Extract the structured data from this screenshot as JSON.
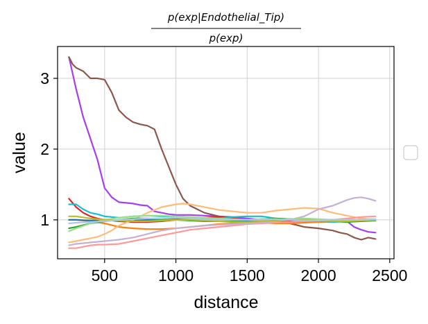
{
  "chart_data": {
    "type": "line",
    "title": {
      "numerator": "p(exp|Endothelial_Tip)",
      "denominator": "p(exp)"
    },
    "xlabel": "distance",
    "ylabel": "value",
    "xlim": [
      170,
      2530
    ],
    "ylim": [
      0.45,
      3.45
    ],
    "xticks": [
      500,
      1000,
      1500,
      2000,
      2500
    ],
    "yticks": [
      1,
      2,
      3
    ],
    "grid": true,
    "legend": "right, empty box",
    "series": [
      {
        "color": "#a83cf0",
        "x": [
          250,
          300,
          350,
          400,
          450,
          500,
          550,
          600,
          650,
          700,
          750,
          800,
          850,
          900,
          950,
          1000,
          1100,
          1200,
          1300,
          1400,
          1500,
          1600,
          1700,
          1800,
          1900,
          2000,
          2100,
          2200,
          2250,
          2300,
          2350,
          2400
        ],
        "y": [
          3.3,
          2.85,
          2.45,
          2.15,
          1.85,
          1.45,
          1.32,
          1.25,
          1.24,
          1.23,
          1.21,
          1.2,
          1.12,
          1.1,
          1.08,
          1.07,
          1.07,
          1.06,
          1.05,
          1.04,
          1.02,
          1.0,
          0.98,
          0.97,
          0.98,
          1.0,
          1.0,
          0.98,
          0.9,
          0.86,
          0.83,
          0.82
        ]
      },
      {
        "color": "#8c564b",
        "x": [
          250,
          275,
          300,
          350,
          400,
          450,
          500,
          550,
          600,
          650,
          700,
          750,
          800,
          850,
          900,
          950,
          1000,
          1050,
          1100,
          1150,
          1200,
          1300,
          1400,
          1500,
          1600,
          1700,
          1800,
          1900,
          2000,
          2100,
          2150,
          2200,
          2250,
          2300,
          2350,
          2400
        ],
        "y": [
          3.3,
          3.2,
          3.15,
          3.1,
          3.0,
          3.0,
          2.98,
          2.8,
          2.55,
          2.45,
          2.38,
          2.35,
          2.33,
          2.28,
          2.0,
          1.75,
          1.5,
          1.3,
          1.2,
          1.15,
          1.1,
          1.05,
          1.02,
          1.0,
          0.95,
          0.98,
          0.95,
          0.9,
          0.88,
          0.85,
          0.82,
          0.8,
          0.75,
          0.72,
          0.75,
          0.73
        ]
      },
      {
        "color": "#d62728",
        "x": [
          250,
          300,
          350,
          400,
          450,
          500,
          600,
          700,
          800,
          900,
          1000,
          1100,
          1200,
          1300,
          1400,
          1500,
          1600,
          1700,
          1800,
          1900,
          2000,
          2100,
          2200,
          2300,
          2400
        ],
        "y": [
          1.3,
          1.18,
          1.1,
          1.05,
          1.02,
          1.0,
          0.98,
          0.97,
          0.97,
          0.98,
          1.0,
          1.02,
          1.03,
          1.04,
          1.02,
          1.0,
          0.99,
          0.98,
          0.99,
          1.0,
          1.0,
          0.99,
          0.98,
          0.99,
          1.0
        ]
      },
      {
        "color": "#17becf",
        "x": [
          250,
          300,
          350,
          400,
          450,
          500,
          600,
          700,
          800,
          900,
          1000,
          1100,
          1200,
          1300,
          1400,
          1500,
          1600,
          1700,
          1800,
          1900,
          2000,
          2100,
          2200,
          2300,
          2400
        ],
        "y": [
          1.22,
          1.22,
          1.15,
          1.1,
          1.08,
          1.05,
          1.03,
          1.05,
          1.06,
          1.05,
          1.05,
          1.04,
          1.02,
          1.02,
          1.04,
          1.05,
          1.05,
          1.02,
          1.0,
          0.98,
          0.97,
          0.97,
          0.98,
          1.0,
          1.0
        ]
      },
      {
        "color": "#ff7f0e",
        "x": [
          250,
          300,
          400,
          500,
          600,
          700,
          800,
          900,
          1000,
          1100,
          1200,
          1300,
          1400,
          1500,
          1600,
          1700,
          1800,
          1900,
          2000,
          2100,
          2200,
          2300,
          2400
        ],
        "y": [
          1.0,
          1.0,
          0.98,
          0.95,
          0.9,
          0.88,
          0.87,
          0.87,
          0.88,
          0.9,
          0.92,
          0.94,
          0.95,
          0.96,
          0.96,
          0.95,
          0.95,
          0.96,
          0.97,
          0.98,
          0.98,
          0.99,
          1.0
        ]
      },
      {
        "color": "#1f77b4",
        "x": [
          250,
          300,
          400,
          500,
          600,
          700,
          800,
          900,
          1000,
          1100,
          1200,
          1300,
          1400,
          1500,
          1600,
          1700,
          1800,
          1900,
          2000,
          2100,
          2200,
          2300,
          2400
        ],
        "y": [
          1.0,
          1.0,
          0.99,
          0.99,
          0.99,
          0.99,
          1.0,
          1.01,
          1.02,
          1.02,
          1.01,
          1.0,
          0.99,
          0.99,
          0.99,
          1.0,
          1.01,
          1.01,
          1.0,
          1.0,
          1.0,
          1.0,
          1.0
        ]
      },
      {
        "color": "#ffbb78",
        "x": [
          250,
          300,
          350,
          400,
          450,
          500,
          550,
          600,
          700,
          800,
          900,
          1000,
          1050,
          1100,
          1200,
          1300,
          1400,
          1500,
          1600,
          1700,
          1800,
          1900,
          2000,
          2100,
          2200,
          2300,
          2400
        ],
        "y": [
          0.68,
          0.7,
          0.72,
          0.74,
          0.76,
          0.8,
          0.85,
          0.92,
          1.0,
          1.1,
          1.18,
          1.22,
          1.23,
          1.22,
          1.18,
          1.14,
          1.12,
          1.1,
          1.1,
          1.13,
          1.15,
          1.17,
          1.16,
          1.1,
          1.06,
          1.02,
          1.0
        ]
      },
      {
        "color": "#ff9896",
        "x": [
          250,
          300,
          350,
          400,
          450,
          500,
          600,
          700,
          800,
          900,
          1000,
          1100,
          1200,
          1300,
          1400,
          1500,
          1600,
          1700,
          1800,
          1900,
          2000,
          2100,
          2200,
          2300,
          2400
        ],
        "y": [
          0.6,
          0.6,
          0.62,
          0.64,
          0.65,
          0.65,
          0.66,
          0.7,
          0.74,
          0.78,
          0.82,
          0.86,
          0.88,
          0.9,
          0.92,
          0.94,
          0.95,
          0.96,
          0.97,
          0.98,
          0.99,
          1.0,
          1.02,
          1.04,
          1.05
        ]
      },
      {
        "color": "#c5b0d5",
        "x": [
          250,
          300,
          400,
          500,
          600,
          700,
          800,
          900,
          1000,
          1100,
          1200,
          1300,
          1400,
          1500,
          1600,
          1700,
          1800,
          1900,
          2000,
          2100,
          2200,
          2250,
          2300,
          2350,
          2400
        ],
        "y": [
          0.64,
          0.66,
          0.68,
          0.7,
          0.72,
          0.75,
          0.8,
          0.85,
          0.88,
          0.9,
          0.92,
          0.93,
          0.94,
          0.95,
          0.96,
          0.98,
          1.0,
          1.05,
          1.15,
          1.2,
          1.28,
          1.31,
          1.32,
          1.3,
          1.27
        ]
      },
      {
        "color": "#2ca02c",
        "x": [
          250,
          300,
          400,
          500,
          600,
          700,
          800,
          900,
          1000,
          1100,
          1200,
          1300,
          1400,
          1500,
          1600,
          1700,
          1800,
          1900,
          2000,
          2100,
          2200,
          2300,
          2400
        ],
        "y": [
          0.88,
          0.9,
          0.95,
          0.98,
          1.0,
          1.02,
          1.02,
          1.01,
          1.0,
          0.99,
          0.98,
          0.98,
          0.99,
          1.0,
          1.01,
          1.02,
          1.01,
          1.0,
          0.99,
          0.98,
          0.97,
          0.98,
          0.99
        ]
      },
      {
        "color": "#98df8a",
        "x": [
          250,
          300,
          400,
          500,
          600,
          700,
          800,
          900,
          1000,
          1100,
          1200,
          1300,
          1400,
          1500,
          1600,
          1700,
          1800,
          1900,
          2000,
          2100,
          2200,
          2300,
          2400
        ],
        "y": [
          0.84,
          0.88,
          0.95,
          1.0,
          1.03,
          1.05,
          1.06,
          1.06,
          1.05,
          1.04,
          1.03,
          1.02,
          1.01,
          1.0,
          1.0,
          1.0,
          1.01,
          1.02,
          1.01,
          1.0,
          1.0,
          1.0,
          1.01
        ]
      },
      {
        "color": "#bcbd22",
        "x": [
          250,
          300,
          400,
          500,
          600,
          700,
          800,
          900,
          1000,
          1100,
          1200,
          1300,
          1400,
          1500,
          1600,
          1700,
          1800,
          1900,
          2000,
          2100,
          2200,
          2300,
          2400
        ],
        "y": [
          1.05,
          1.05,
          1.02,
          1.0,
          0.99,
          0.98,
          0.98,
          0.99,
          1.0,
          1.0,
          0.99,
          0.98,
          0.97,
          0.97,
          0.98,
          0.99,
          1.0,
          1.0,
          0.99,
          0.98,
          0.98,
          0.99,
          1.0
        ]
      },
      {
        "color": "#aec7e8",
        "x": [
          250,
          300,
          400,
          500,
          600,
          700,
          800,
          900,
          1000,
          1100,
          1200,
          1300,
          1400,
          1500,
          1600,
          1700,
          1800,
          1900,
          2000,
          2100,
          2200,
          2300,
          2400
        ],
        "y": [
          0.95,
          0.96,
          0.97,
          0.98,
          1.0,
          1.01,
          1.02,
          1.02,
          1.03,
          1.02,
          1.01,
          1.0,
          1.0,
          1.0,
          1.01,
          1.01,
          1.0,
          0.99,
          0.99,
          1.0,
          1.0,
          1.0,
          1.0
        ]
      }
    ]
  }
}
